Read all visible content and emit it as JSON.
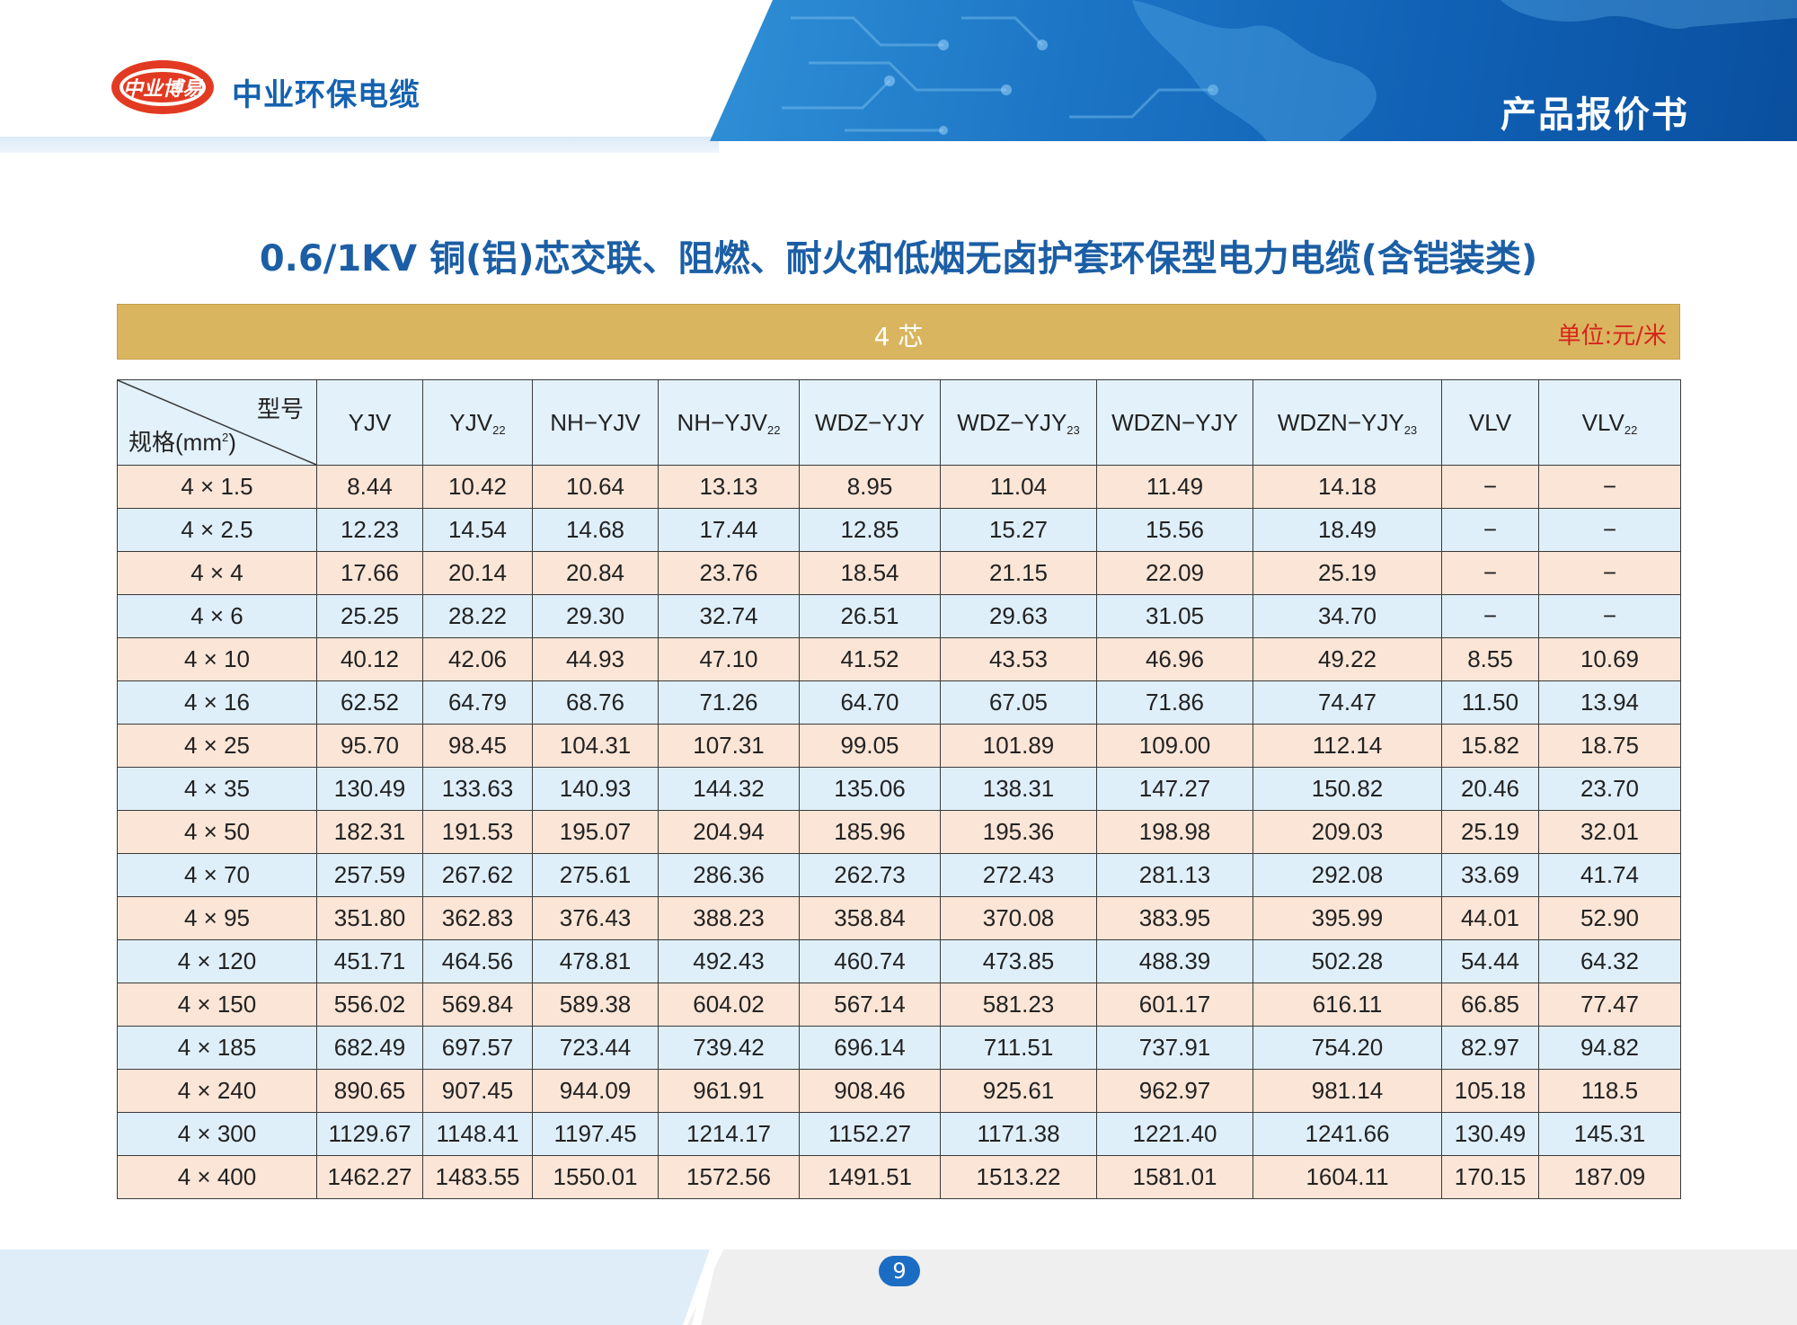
{
  "brand": {
    "logo_text": "中业博易",
    "company_name": "中业环保电缆"
  },
  "header": {
    "doc_title": "产品报价书"
  },
  "page_title": "0.6/1KV 铜(铝)芯交联、阻燃、耐火和低烟无卤护套环保型电力电缆(含铠装类)",
  "section": {
    "label": "4 芯",
    "unit": "单位:元/米"
  },
  "table": {
    "corner_type": "型号",
    "corner_spec": "规格(mm",
    "corner_spec_sup": "2",
    "corner_spec_tail": ")",
    "columns": [
      {
        "main": "YJV",
        "sub": ""
      },
      {
        "main": "YJV",
        "sub": "22"
      },
      {
        "main": "NH−YJV",
        "sub": ""
      },
      {
        "main": "NH−YJV",
        "sub": "22"
      },
      {
        "main": "WDZ−YJY",
        "sub": ""
      },
      {
        "main": "WDZ−YJY",
        "sub": "23"
      },
      {
        "main": "WDZN−YJY",
        "sub": ""
      },
      {
        "main": "WDZN−YJY",
        "sub": "23"
      },
      {
        "main": "VLV",
        "sub": ""
      },
      {
        "main": "VLV",
        "sub": "22"
      }
    ],
    "rows": [
      {
        "spec": "4 × 1.5",
        "values": [
          "8.44",
          "10.42",
          "10.64",
          "13.13",
          "8.95",
          "11.04",
          "11.49",
          "14.18",
          "−",
          "−"
        ]
      },
      {
        "spec": "4 × 2.5",
        "values": [
          "12.23",
          "14.54",
          "14.68",
          "17.44",
          "12.85",
          "15.27",
          "15.56",
          "18.49",
          "−",
          "−"
        ]
      },
      {
        "spec": "4 × 4",
        "values": [
          "17.66",
          "20.14",
          "20.84",
          "23.76",
          "18.54",
          "21.15",
          "22.09",
          "25.19",
          "−",
          "−"
        ]
      },
      {
        "spec": "4 × 6",
        "values": [
          "25.25",
          "28.22",
          "29.30",
          "32.74",
          "26.51",
          "29.63",
          "31.05",
          "34.70",
          "−",
          "−"
        ]
      },
      {
        "spec": "4 × 10",
        "values": [
          "40.12",
          "42.06",
          "44.93",
          "47.10",
          "41.52",
          "43.53",
          "46.96",
          "49.22",
          "8.55",
          "10.69"
        ]
      },
      {
        "spec": "4 × 16",
        "values": [
          "62.52",
          "64.79",
          "68.76",
          "71.26",
          "64.70",
          "67.05",
          "71.86",
          "74.47",
          "11.50",
          "13.94"
        ]
      },
      {
        "spec": "4 × 25",
        "values": [
          "95.70",
          "98.45",
          "104.31",
          "107.31",
          "99.05",
          "101.89",
          "109.00",
          "112.14",
          "15.82",
          "18.75"
        ]
      },
      {
        "spec": "4 × 35",
        "values": [
          "130.49",
          "133.63",
          "140.93",
          "144.32",
          "135.06",
          "138.31",
          "147.27",
          "150.82",
          "20.46",
          "23.70"
        ]
      },
      {
        "spec": "4 × 50",
        "values": [
          "182.31",
          "191.53",
          "195.07",
          "204.94",
          "185.96",
          "195.36",
          "198.98",
          "209.03",
          "25.19",
          "32.01"
        ]
      },
      {
        "spec": "4 × 70",
        "values": [
          "257.59",
          "267.62",
          "275.61",
          "286.36",
          "262.73",
          "272.43",
          "281.13",
          "292.08",
          "33.69",
          "41.74"
        ]
      },
      {
        "spec": "4 × 95",
        "values": [
          "351.80",
          "362.83",
          "376.43",
          "388.23",
          "358.84",
          "370.08",
          "383.95",
          "395.99",
          "44.01",
          "52.90"
        ]
      },
      {
        "spec": "4 × 120",
        "values": [
          "451.71",
          "464.56",
          "478.81",
          "492.43",
          "460.74",
          "473.85",
          "488.39",
          "502.28",
          "54.44",
          "64.32"
        ]
      },
      {
        "spec": "4 × 150",
        "values": [
          "556.02",
          "569.84",
          "589.38",
          "604.02",
          "567.14",
          "581.23",
          "601.17",
          "616.11",
          "66.85",
          "77.47"
        ]
      },
      {
        "spec": "4 × 185",
        "values": [
          "682.49",
          "697.57",
          "723.44",
          "739.42",
          "696.14",
          "711.51",
          "737.91",
          "754.20",
          "82.97",
          "94.82"
        ]
      },
      {
        "spec": "4 × 240",
        "values": [
          "890.65",
          "907.45",
          "944.09",
          "961.91",
          "908.46",
          "925.61",
          "962.97",
          "981.14",
          "105.18",
          "118.5"
        ]
      },
      {
        "spec": "4 × 300",
        "values": [
          "1129.67",
          "1148.41",
          "1197.45",
          "1214.17",
          "1152.27",
          "1171.38",
          "1221.40",
          "1241.66",
          "130.49",
          "145.31"
        ]
      },
      {
        "spec": "4 × 400",
        "values": [
          "1462.27",
          "1483.55",
          "1550.01",
          "1572.56",
          "1491.51",
          "1513.22",
          "1581.01",
          "1604.11",
          "170.15",
          "187.09"
        ]
      }
    ]
  },
  "footer": {
    "page_number": "9"
  },
  "colors": {
    "brand_blue": "#1b5ea5",
    "gold": "#d9b55f",
    "unit_red": "#d8241c",
    "row_peach": "#fbe5d6",
    "row_blue": "#dfeffa"
  }
}
